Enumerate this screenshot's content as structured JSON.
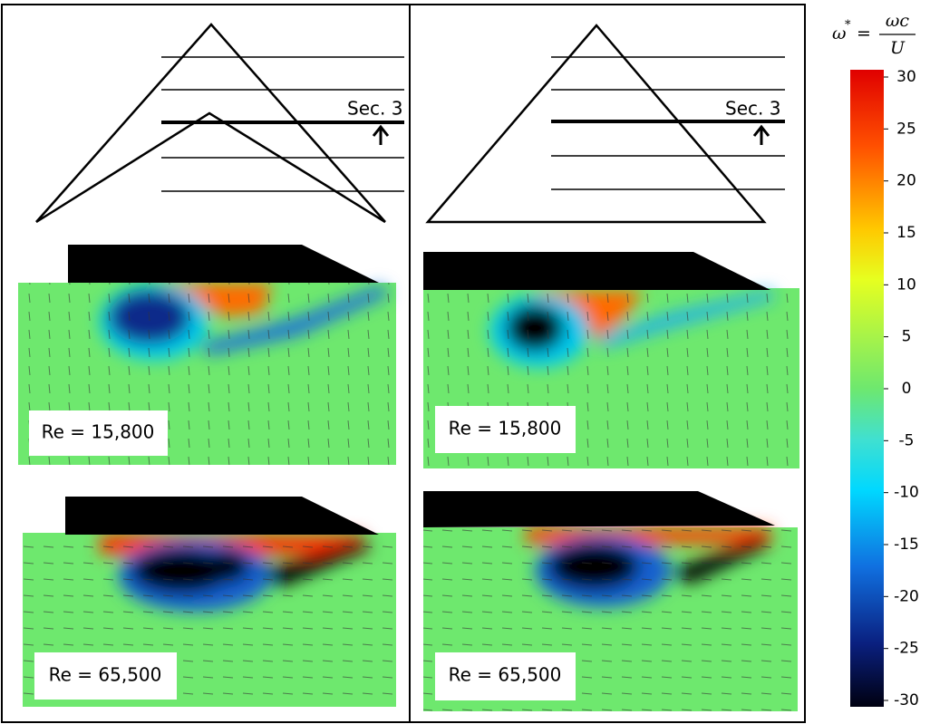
{
  "colorbar": {
    "label": {
      "lhs": "ω",
      "sup": "*",
      "equals": "=",
      "numerator": "ωc",
      "denominator": "U"
    },
    "range": [
      -30,
      30
    ],
    "ticks": [
      30,
      25,
      20,
      15,
      10,
      5,
      0,
      -5,
      -10,
      -15,
      -20,
      -25,
      -30
    ]
  },
  "panels": [
    {
      "section": "Sec. 3",
      "flows": [
        {
          "label": "Re = 15,800"
        },
        {
          "label": "Re = 65,500"
        }
      ]
    },
    {
      "section": "Sec. 3",
      "flows": [
        {
          "label": "Re = 15,800"
        },
        {
          "label": "Re = 65,500"
        }
      ]
    }
  ]
}
